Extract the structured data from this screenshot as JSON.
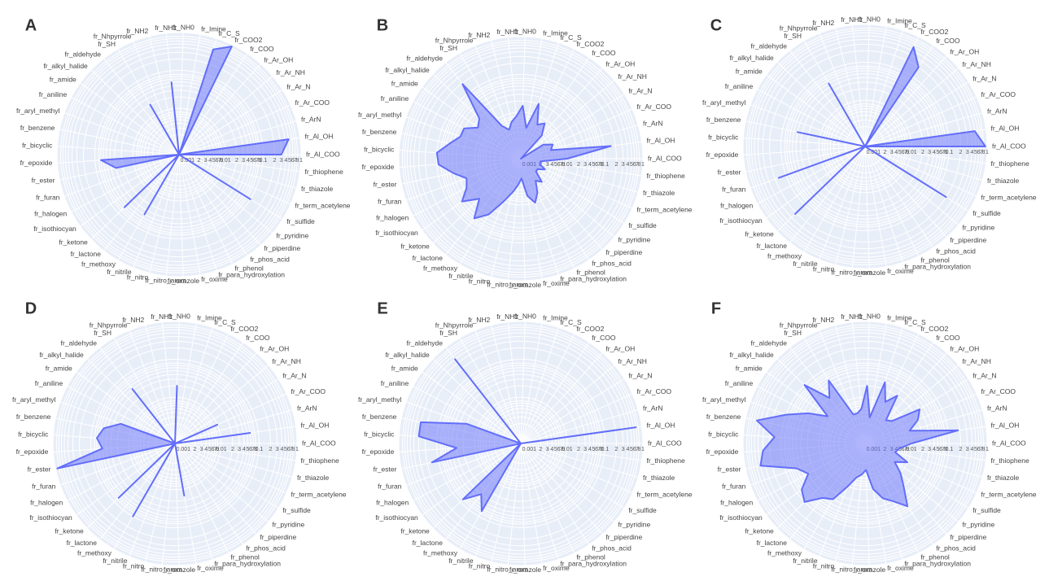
{
  "categories": [
    "fr_Al_COO",
    "fr_Al_OH",
    "fr_ArN",
    "fr_Ar_COO",
    "fr_Ar_N",
    "fr_Ar_NH",
    "fr_Ar_OH",
    "fr_COO",
    "fr_COO2",
    "fr_C_S",
    "fr_Imine",
    "fr_NH0",
    "fr_NH1",
    "fr_NH2",
    "fr_Nhpyrrole",
    "fr_SH",
    "fr_aldehyde",
    "fr_alkyl_halide",
    "fr_amide",
    "fr_aniline",
    "fr_aryl_methyl",
    "fr_benzene",
    "fr_bicyclic",
    "fr_epoxide",
    "fr_ester",
    "fr_furan",
    "fr_halogen",
    "fr_isothiocyan",
    "fr_ketone",
    "fr_lactone",
    "fr_methoxy",
    "fr_nitrile",
    "fr_nitro",
    "fr_nitro_arom",
    "fr_oxazole",
    "fr_oxime",
    "fr_para_hydroxylation",
    "fr_phenol",
    "fr_phos_acid",
    "fr_piperdine",
    "fr_pyridine",
    "fr_sulfide",
    "fr_term_acetylene",
    "fr_thiazole",
    "fr_thiophene"
  ],
  "radial_axis": {
    "log": true,
    "rlim": [
      0.0006,
      1
    ],
    "rticks": [
      0.001,
      {
        "value": 0.002,
        "label": "2"
      },
      {
        "value": 0.003,
        "label": "3"
      },
      {
        "value": 0.004,
        "label": "4"
      },
      {
        "value": 0.005,
        "label": "5"
      },
      {
        "value": 0.006,
        "label": "6"
      },
      {
        "value": 0.007,
        "label": "7"
      },
      {
        "value": 0.008,
        "label": "8"
      },
      0.01,
      {
        "value": 0.02,
        "label": "2"
      },
      {
        "value": 0.03,
        "label": "3"
      },
      {
        "value": 0.04,
        "label": "4"
      },
      {
        "value": 0.05,
        "label": "5"
      },
      {
        "value": 0.06,
        "label": "6"
      },
      {
        "value": 0.07,
        "label": "7"
      },
      {
        "value": 0.08,
        "label": "8"
      },
      0.1,
      {
        "value": 0.2,
        "label": "2"
      },
      {
        "value": 0.3,
        "label": "3"
      },
      {
        "value": 0.4,
        "label": "4"
      },
      {
        "value": 0.5,
        "label": "5"
      },
      {
        "value": 0.6,
        "label": "6"
      },
      {
        "value": 0.7,
        "label": "7"
      },
      {
        "value": 0.8,
        "label": "8"
      },
      1
    ]
  },
  "chart_data": [
    {
      "type": "polar",
      "title": "A",
      "color": "#636efa",
      "values": [
        0.3,
        0.5,
        0,
        0,
        0,
        0,
        0,
        0,
        0.9,
        0.5,
        0,
        0,
        0.05,
        0,
        0,
        0.02,
        0,
        0,
        0,
        0,
        0,
        0,
        0,
        0.07,
        0.03,
        0,
        0,
        0,
        0.06,
        0,
        0.04,
        0,
        0,
        0,
        0,
        0,
        0,
        0,
        0,
        0,
        0,
        0.1,
        0,
        0,
        0
      ]
    },
    {
      "type": "polar",
      "title": "B",
      "color": "#636efa",
      "values": [
        0.01,
        0.15,
        0.004,
        0.005,
        0.003,
        0,
        0.004,
        0.008,
        0.006,
        0.02,
        0.004,
        0.015,
        0.008,
        0.006,
        0.004,
        0.006,
        0.19,
        0.02,
        0.015,
        0.03,
        0.03,
        0.05,
        0.1,
        0.09,
        0.04,
        0.02,
        0.025,
        0.05,
        0.02,
        0.06,
        0.03,
        0.01,
        0.005,
        0.003,
        0.002,
        0.006,
        0.01,
        0.006,
        0.003,
        0.004,
        0.002,
        0.002,
        0.003,
        0.002,
        0.002
      ]
    },
    {
      "type": "polar",
      "title": "C",
      "color": "#636efa",
      "values": [
        0.9,
        0.5,
        0,
        0,
        0,
        0,
        0,
        0.2,
        0.5,
        0,
        0,
        0,
        0,
        0,
        0,
        0.05,
        0,
        0,
        0,
        0,
        0,
        0.04,
        0,
        0,
        0,
        0.16,
        0,
        0,
        0.22,
        0,
        0,
        0,
        0,
        0,
        0,
        0,
        0,
        0,
        0,
        0,
        0,
        0.2,
        0,
        0,
        0
      ]
    },
    {
      "type": "polar",
      "title": "D",
      "color": "#636efa",
      "values": [
        0,
        0.06,
        0,
        0.01,
        0,
        0,
        0,
        0,
        0,
        0,
        0,
        0.02,
        0,
        0,
        0,
        0,
        0.04,
        0,
        0,
        0,
        0.02,
        0.05,
        0.07,
        0.05,
        0.9,
        0,
        0,
        0,
        0.07,
        0,
        0.1,
        0,
        0,
        0,
        0,
        0.015,
        0,
        0,
        0,
        0,
        0,
        0,
        0,
        0,
        0
      ]
    },
    {
      "type": "polar",
      "title": "E",
      "color": "#636efa",
      "values": [
        0,
        0.7,
        0,
        0,
        0,
        0,
        0,
        0,
        0,
        0,
        0,
        0,
        0,
        0,
        0,
        0,
        0.4,
        0,
        0,
        0,
        0.02,
        0.3,
        0.3,
        0.03,
        0.15,
        0,
        0,
        0,
        0.08,
        0.03,
        0.07,
        0,
        0,
        0,
        0,
        0,
        0,
        0,
        0,
        0,
        0,
        0,
        0,
        0,
        0
      ]
    },
    {
      "type": "polar",
      "title": "F",
      "color": "#636efa",
      "values": [
        0.01,
        0.18,
        0.01,
        0.02,
        0.03,
        0.005,
        0.004,
        0.02,
        0.01,
        0.03,
        0.003,
        0.02,
        0.005,
        0.004,
        0.004,
        0.05,
        0.02,
        0.1,
        0.01,
        0.03,
        0.1,
        0.5,
        0.15,
        0.3,
        0.4,
        0.05,
        0.03,
        0.07,
        0.1,
        0.04,
        0.03,
        0.01,
        0.005,
        0.004,
        0.003,
        0.01,
        0.02,
        0.03,
        0.06,
        0.02,
        0.01,
        0.005,
        0.01,
        0.004,
        0.005
      ]
    }
  ]
}
